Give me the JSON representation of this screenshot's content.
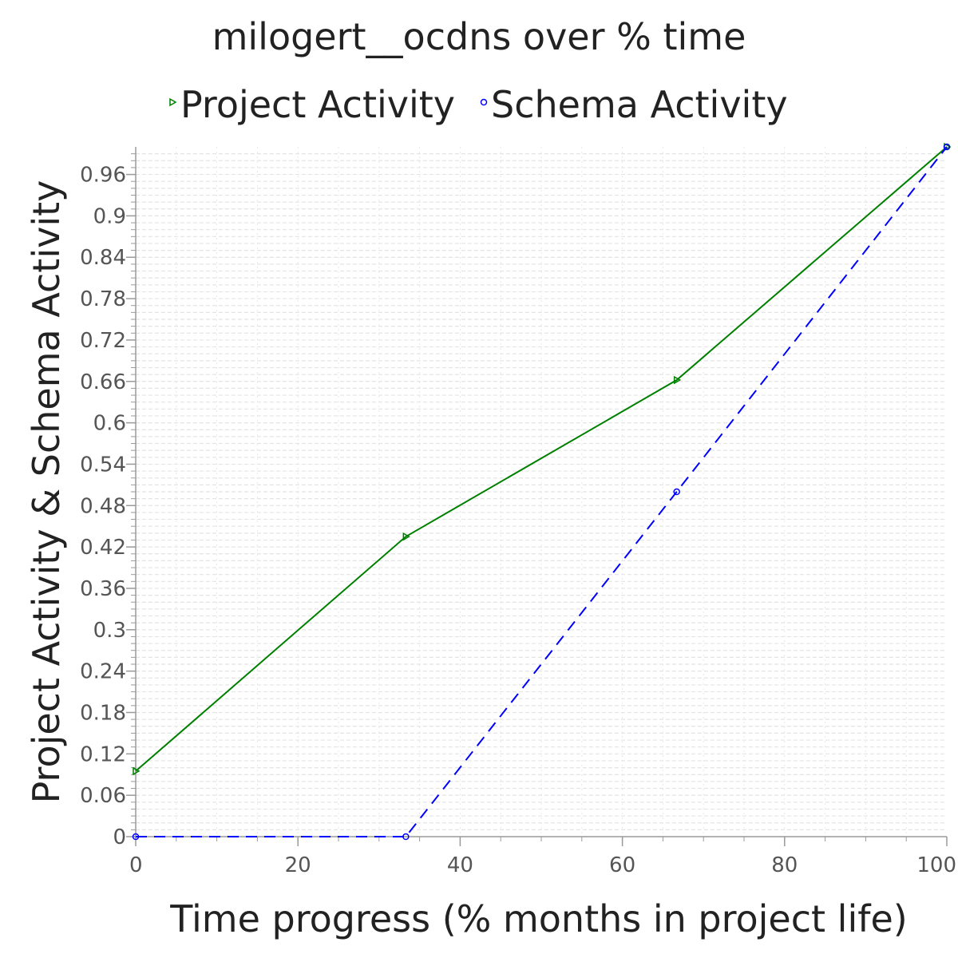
{
  "chart_data": {
    "type": "line",
    "title": "milogert__ocdns over % time",
    "xlabel": "Time progress (% months in project life)",
    "ylabel": "Project Activity & Schema Activity",
    "xlim": [
      0,
      100
    ],
    "ylim": [
      0,
      1.0
    ],
    "xticks": [
      "0",
      "20",
      "40",
      "60",
      "80",
      "100"
    ],
    "yticks": [
      "0",
      "0.06",
      "0.12",
      "0.18",
      "0.24",
      "0.3",
      "0.36",
      "0.42",
      "0.48",
      "0.54",
      "0.6",
      "0.66",
      "0.72",
      "0.78",
      "0.84",
      "0.9",
      "0.96"
    ],
    "legend_position": "top",
    "grid": true,
    "series": [
      {
        "name": "Project Activity",
        "color": "#008000",
        "style": "solid",
        "marker": "triangle-right",
        "x": [
          0,
          33.3,
          66.7,
          100
        ],
        "y": [
          0.095,
          0.435,
          0.662,
          1.0
        ]
      },
      {
        "name": "Schema Activity",
        "color": "#0000ff",
        "style": "dashed",
        "marker": "circle",
        "x": [
          0,
          33.3,
          66.7,
          100
        ],
        "y": [
          0.0,
          0.0,
          0.5,
          1.0
        ]
      }
    ]
  }
}
